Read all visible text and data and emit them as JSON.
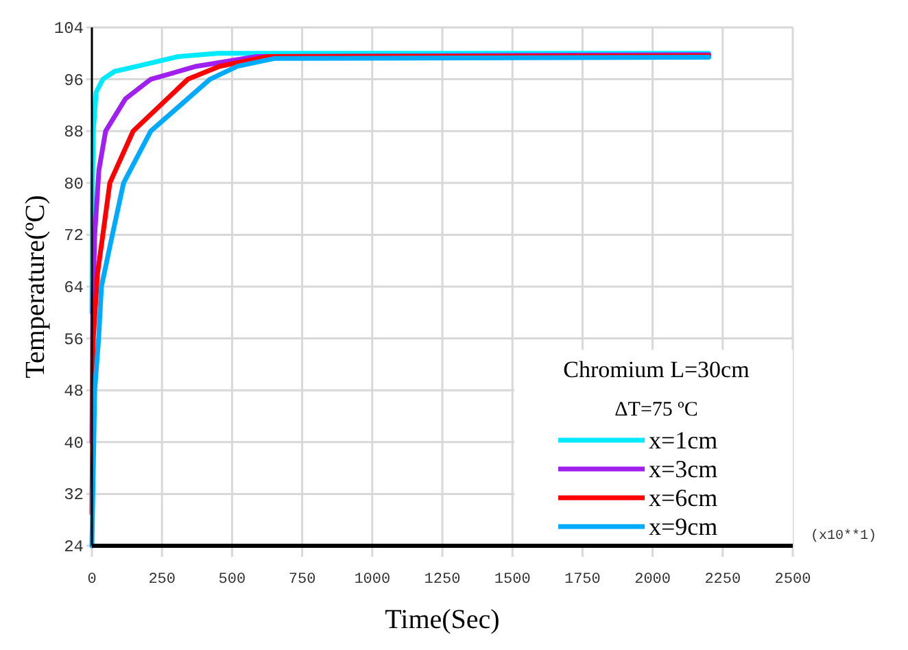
{
  "chart_data": {
    "type": "line",
    "xlabel": "Time(Sec)",
    "ylabel": "Temperature(ºC)",
    "legend_title": "Chromium  L=30cm",
    "annotations": [
      "ΔT=75 ºC",
      "(x10**1)"
    ],
    "xlim": [
      0,
      2500
    ],
    "xticks": [
      0,
      250,
      500,
      750,
      1000,
      1250,
      1500,
      1750,
      2000,
      2250,
      2500
    ],
    "ylim": [
      24,
      104
    ],
    "yticks": [
      24,
      32,
      40,
      48,
      56,
      64,
      72,
      80,
      88,
      96,
      104
    ],
    "grid": true,
    "legend": "bottom right",
    "marker": "none",
    "line_style": "solid",
    "series": [
      {
        "name": "x=1cm",
        "color": "#00eaff",
        "x": [
          0,
          2,
          5,
          15,
          39,
          80,
          161,
          308,
          450,
          2200
        ],
        "values": [
          60,
          80,
          88,
          94,
          96,
          97.2,
          98,
          99.5,
          100,
          100
        ]
      },
      {
        "name": "x=3cm",
        "color": "#a020f0",
        "x": [
          0,
          3,
          10,
          25,
          49,
          120,
          210,
          372,
          587,
          2200
        ],
        "values": [
          40,
          60,
          72,
          82,
          88,
          93,
          96,
          98,
          99.5,
          99.8
        ]
      },
      {
        "name": "x=6cm",
        "color": "#ff0000",
        "x": [
          0,
          5,
          20,
          39,
          64,
          147,
          342,
          455,
          626,
          2200
        ],
        "values": [
          29,
          56,
          66,
          72,
          80,
          88,
          96,
          98,
          99.5,
          99.6
        ]
      },
      {
        "name": "x=9cm",
        "color": "#00aaff",
        "x": [
          0,
          10,
          24,
          34,
          73,
          113,
          210,
          421,
          519,
          650,
          2200
        ],
        "values": [
          24,
          48,
          56,
          64,
          72,
          80,
          88,
          96,
          98,
          99.2,
          99.4
        ]
      }
    ]
  }
}
